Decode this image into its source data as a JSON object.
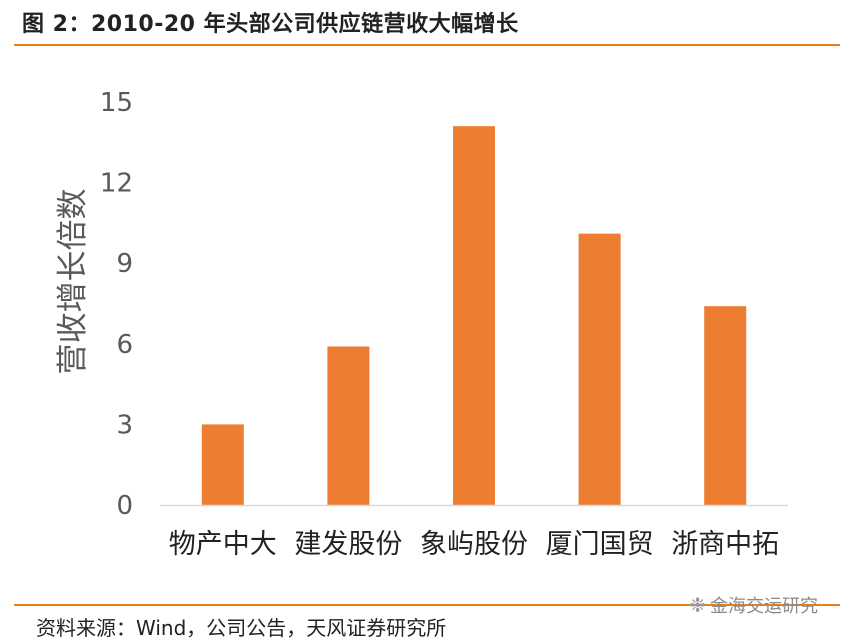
{
  "title": "图 2：2010-20 年头部公司供应链营收大幅增长",
  "source": "资料来源：Wind，公司公告，天风证券研究所",
  "watermark": {
    "icon": "wechat-icon",
    "text": "金海交运研究"
  },
  "colors": {
    "bar": "#ed7d31",
    "accent": "#e8801a",
    "axis": "#d9d9d9",
    "tick": "#595959"
  },
  "chart_data": {
    "type": "bar",
    "title": "",
    "xlabel": "",
    "ylabel": "营收增长倍数",
    "categories": [
      "物产中大",
      "建发股份",
      "象屿股份",
      "厦门国贸",
      "浙商中拓"
    ],
    "values": [
      3.0,
      5.9,
      14.1,
      10.1,
      7.4
    ],
    "ylim": [
      0,
      15
    ],
    "yticks": [
      0,
      3,
      6,
      9,
      12,
      15
    ],
    "grid": false,
    "legend": "none"
  }
}
